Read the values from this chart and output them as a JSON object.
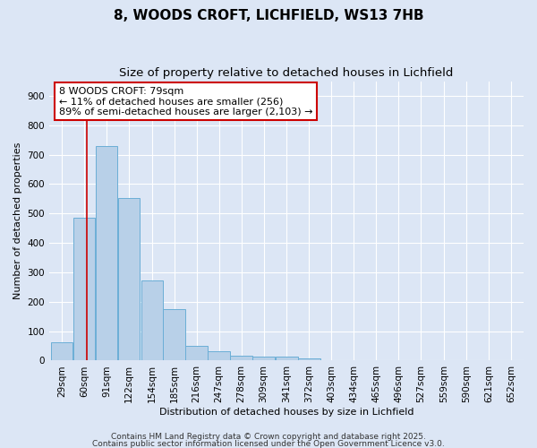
{
  "title": "8, WOODS CROFT, LICHFIELD, WS13 7HB",
  "subtitle": "Size of property relative to detached houses in Lichfield",
  "xlabel": "Distribution of detached houses by size in Lichfield",
  "ylabel": "Number of detached properties",
  "bin_labels": [
    "29sqm",
    "60sqm",
    "91sqm",
    "122sqm",
    "154sqm",
    "185sqm",
    "216sqm",
    "247sqm",
    "278sqm",
    "309sqm",
    "341sqm",
    "372sqm",
    "403sqm",
    "434sqm",
    "465sqm",
    "496sqm",
    "527sqm",
    "559sqm",
    "590sqm",
    "621sqm",
    "652sqm"
  ],
  "bin_edges": [
    29,
    60,
    91,
    122,
    154,
    185,
    216,
    247,
    278,
    309,
    341,
    372,
    403,
    434,
    465,
    496,
    527,
    559,
    590,
    621,
    652
  ],
  "bar_heights": [
    62,
    485,
    730,
    553,
    272,
    175,
    50,
    32,
    18,
    13,
    13,
    8,
    0,
    0,
    0,
    0,
    0,
    0,
    0,
    0
  ],
  "bar_color": "#b8d0e8",
  "bar_edge_color": "#6baed6",
  "property_size": 79,
  "vline_color": "#cc0000",
  "annotation_line1": "8 WOODS CROFT: 79sqm",
  "annotation_line2": "← 11% of detached houses are smaller (256)",
  "annotation_line3": "89% of semi-detached houses are larger (2,103) →",
  "annotation_box_color": "#ffffff",
  "annotation_box_edge": "#cc0000",
  "ylim": [
    0,
    950
  ],
  "yticks": [
    0,
    100,
    200,
    300,
    400,
    500,
    600,
    700,
    800,
    900
  ],
  "background_color": "#dce6f5",
  "plot_bg_color": "#dce6f5",
  "footer_line1": "Contains HM Land Registry data © Crown copyright and database right 2025.",
  "footer_line2": "Contains public sector information licensed under the Open Government Licence v3.0.",
  "title_fontsize": 11,
  "subtitle_fontsize": 9.5,
  "axis_label_fontsize": 8,
  "tick_fontsize": 7.5,
  "annotation_fontsize": 8,
  "footer_fontsize": 6.5
}
